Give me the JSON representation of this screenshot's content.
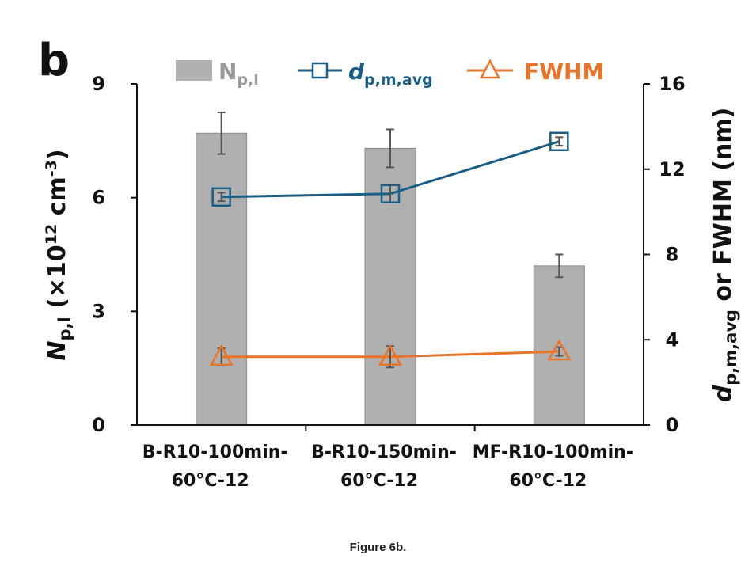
{
  "figure": {
    "panel_label": "b",
    "caption": "Figure 6b."
  },
  "chart_data": {
    "type": "bar",
    "categories": [
      [
        "B-R10-100min-",
        "60°C-12"
      ],
      [
        "B-R10-150min-",
        "60°C-12"
      ],
      [
        "MF-R10-100min-",
        "60°C-12"
      ]
    ],
    "left_axis": {
      "label_main": "N",
      "label_sub": "p,l",
      "label_rest": " (×10",
      "label_sup1": "12",
      "label_unit": " cm",
      "label_sup2": "-3",
      "label_close": ")",
      "ylim": [
        0,
        9
      ],
      "ticks": [
        "0",
        "3",
        "6",
        "9"
      ]
    },
    "right_axis": {
      "label_main": "d",
      "label_sub": "p,m,avg",
      "label_rest": " or FWHM (nm)",
      "ylim": [
        0,
        16
      ],
      "ticks": [
        "0",
        "4",
        "8",
        "12",
        "16"
      ]
    },
    "series": [
      {
        "name": "N",
        "name_sub": "p,l",
        "kind": "bar",
        "axis": "left",
        "color": "#b0b0b0",
        "values": [
          7.7,
          7.3,
          4.2
        ],
        "errors": [
          0.55,
          0.5,
          0.3
        ]
      },
      {
        "name": "d",
        "name_sub": "p,m,avg",
        "kind": "line",
        "marker": "square",
        "axis": "right",
        "color": "#1a5e86",
        "values": [
          10.7,
          10.85,
          13.3
        ],
        "errors": [
          0.2,
          0.4,
          0.2
        ]
      },
      {
        "name": "FWHM",
        "name_sub": "",
        "kind": "line",
        "marker": "triangle",
        "axis": "right",
        "color": "#e8742a",
        "values": [
          3.2,
          3.2,
          3.45
        ],
        "errors": [
          0.4,
          0.5,
          0.2
        ]
      }
    ]
  }
}
